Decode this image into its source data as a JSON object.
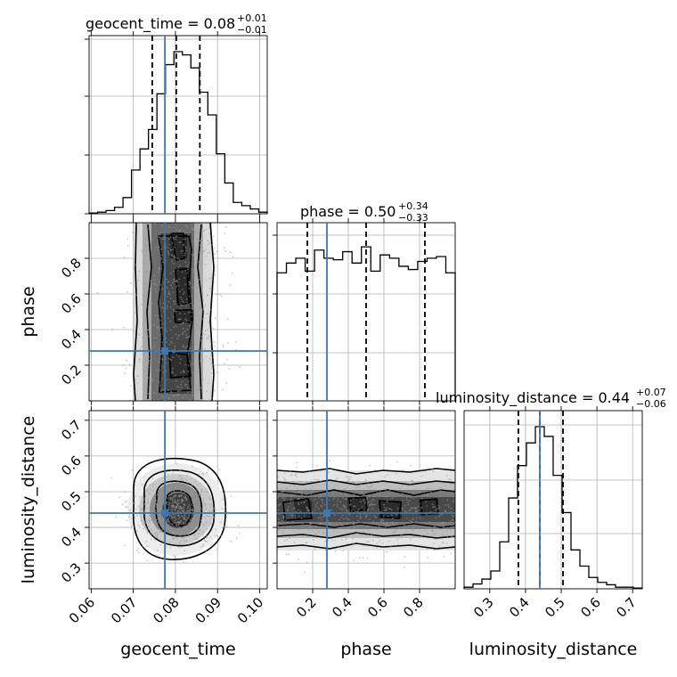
{
  "chart_data": {
    "type": "corner",
    "grid": true,
    "colors": {
      "truth": "#3b78b3",
      "hist": "#000000",
      "points": "#9a9a9a",
      "quantile": "#000000"
    },
    "parameters": [
      {
        "name": "geocent_time",
        "axis_label": "geocent_time",
        "title_base": "geocent_time = 0.08",
        "title_plus": "+0.01",
        "title_minus": "−0.01",
        "range": [
          0.0595,
          0.1018
        ],
        "ticks": [
          0.06,
          0.07,
          0.08,
          0.09,
          0.1
        ],
        "tick_labels": [
          "0.06",
          "0.07",
          "0.08",
          "0.09",
          "0.10"
        ],
        "truth": 0.0775,
        "quantiles": [
          0.0745,
          0.0802,
          0.0858
        ],
        "hist": [
          0.005,
          0.01,
          0.02,
          0.04,
          0.1,
          0.27,
          0.4,
          0.52,
          0.74,
          0.92,
          1.0,
          0.98,
          0.9,
          0.75,
          0.61,
          0.37,
          0.19,
          0.07,
          0.05,
          0.03,
          0.01
        ]
      },
      {
        "name": "phase",
        "axis_label": "phase",
        "title_base": "phase = 0.50",
        "title_plus": "+0.34",
        "title_minus": "−0.33",
        "range": [
          0.0,
          1.0
        ],
        "ticks": [
          0.2,
          0.4,
          0.6,
          0.8
        ],
        "tick_labels": [
          "0.2",
          "0.4",
          "0.6",
          "0.8"
        ],
        "truth": 0.28,
        "quantiles": [
          0.17,
          0.5,
          0.83
        ],
        "hist": [
          0.79,
          0.85,
          0.88,
          0.8,
          0.93,
          0.88,
          0.87,
          0.92,
          0.85,
          0.95,
          0.8,
          0.9,
          0.88,
          0.83,
          0.81,
          0.86,
          0.88,
          0.89,
          0.79
        ]
      },
      {
        "name": "luminosity_distance",
        "axis_label": "luminosity_distance",
        "title_base": "luminosity_distance = 0.44",
        "title_plus": "+0.07",
        "title_minus": "−0.06",
        "range": [
          0.228,
          0.727
        ],
        "ticks": [
          0.3,
          0.4,
          0.5,
          0.6,
          0.7
        ],
        "tick_labels": [
          "0.3",
          "0.4",
          "0.5",
          "0.6",
          "0.7"
        ],
        "truth": 0.44,
        "quantiles": [
          0.38,
          0.44,
          0.505
        ],
        "hist": [
          0.01,
          0.03,
          0.06,
          0.11,
          0.29,
          0.56,
          0.76,
          0.9,
          1.0,
          0.94,
          0.7,
          0.47,
          0.24,
          0.14,
          0.07,
          0.04,
          0.025,
          0.01,
          0.01,
          0.005
        ]
      }
    ],
    "hist1_yticks": [
      0,
      0.33,
      0.66,
      0.98
    ],
    "hist2_yticks": [
      0.93,
      0.6,
      0.27
    ]
  }
}
